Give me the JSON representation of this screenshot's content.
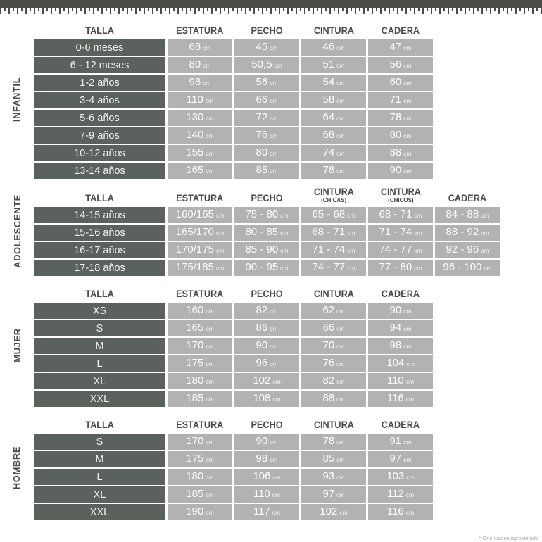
{
  "footnote": "* Orientación aproximada",
  "unit": "cm",
  "sections": [
    {
      "id": "infantil",
      "label": "INFANTIL",
      "headers": [
        {
          "text": "TALLA"
        },
        {
          "text": "ESTATURA"
        },
        {
          "text": "PECHO"
        },
        {
          "text": "CINTURA"
        },
        {
          "text": "CADERA"
        }
      ],
      "rows": [
        [
          "0-6 meses",
          "68",
          "45",
          "46",
          "47"
        ],
        [
          "6 - 12 meses",
          "80",
          "50,5",
          "51",
          "56"
        ],
        [
          "1-2 años",
          "98",
          "56",
          "54",
          "60"
        ],
        [
          "3-4 años",
          "110",
          "66",
          "58",
          "71"
        ],
        [
          "5-6 años",
          "130",
          "72",
          "64",
          "78"
        ],
        [
          "7-9 años",
          "140",
          "76",
          "68",
          "80"
        ],
        [
          "10-12 años",
          "155",
          "80",
          "74",
          "88"
        ],
        [
          "13-14 años",
          "165",
          "85",
          "78",
          "90"
        ]
      ]
    },
    {
      "id": "adolescente",
      "label": "ADOLESCENTE",
      "headers": [
        {
          "text": "TALLA"
        },
        {
          "text": "ESTATURA"
        },
        {
          "text": "PECHO"
        },
        {
          "text": "CINTURA",
          "sub": "(CHICAS)"
        },
        {
          "text": "CINTURA",
          "sub": "(CHICOS)"
        },
        {
          "text": "CADERA"
        }
      ],
      "rows": [
        [
          "14-15 años",
          "160/165",
          "75 - 80",
          "65 - 68",
          "68 - 71",
          "84 - 88"
        ],
        [
          "15-16 años",
          "165/170",
          "80 - 85",
          "68 - 71",
          "71 - 74",
          "88 - 92"
        ],
        [
          "16-17 años",
          "170/175",
          "85 - 90",
          "71 - 74",
          "74 - 77",
          "92 - 96"
        ],
        [
          "17-18 años",
          "175/185",
          "90 - 95",
          "74 - 77",
          "77 - 80",
          "96 - 100"
        ]
      ]
    },
    {
      "id": "mujer",
      "label": "MUJER",
      "headers": [
        {
          "text": "TALLA"
        },
        {
          "text": "ESTATURA"
        },
        {
          "text": "PECHO"
        },
        {
          "text": "CINTURA"
        },
        {
          "text": "CADERA"
        }
      ],
      "rows": [
        [
          "XS",
          "160",
          "82",
          "62",
          "90"
        ],
        [
          "S",
          "165",
          "86",
          "66",
          "94"
        ],
        [
          "M",
          "170",
          "90",
          "70",
          "98"
        ],
        [
          "L",
          "175",
          "96",
          "76",
          "104"
        ],
        [
          "XL",
          "180",
          "102",
          "82",
          "110"
        ],
        [
          "XXL",
          "185",
          "108",
          "88",
          "116"
        ]
      ]
    },
    {
      "id": "hombre",
      "label": "HOMBRE",
      "headers": [
        {
          "text": "TALLA"
        },
        {
          "text": "ESTATURA"
        },
        {
          "text": "PECHO"
        },
        {
          "text": "CINTURA"
        },
        {
          "text": "CADERA"
        }
      ],
      "rows": [
        [
          "S",
          "170",
          "90",
          "78",
          "91"
        ],
        [
          "M",
          "175",
          "98",
          "85",
          "97"
        ],
        [
          "L",
          "180",
          "106",
          "93",
          "103"
        ],
        [
          "XL",
          "185",
          "110",
          "97",
          "112"
        ],
        [
          "XXL",
          "190",
          "117",
          "102",
          "116"
        ]
      ]
    }
  ],
  "colors": {
    "tape_bar": "#4b4b49",
    "size_label_cell": "#5b615c",
    "value_cell": "#b2b2b2",
    "header_text": "#4a4a4a"
  }
}
